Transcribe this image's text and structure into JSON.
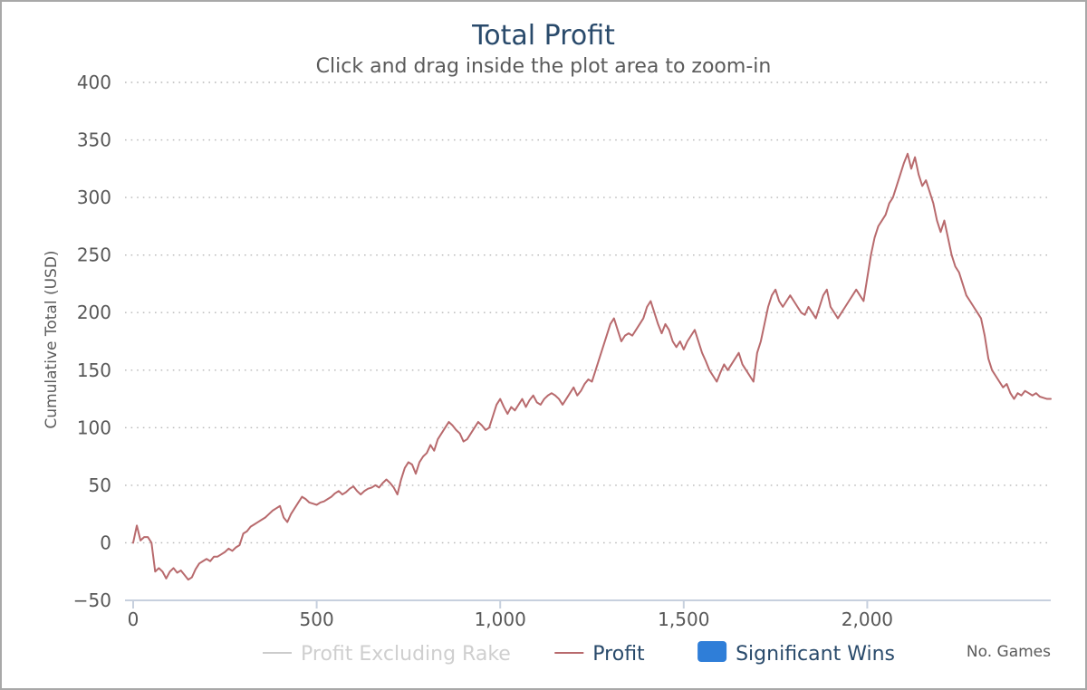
{
  "chart_data": {
    "type": "line",
    "title": "Total Profit",
    "subtitle": "Click and drag inside the plot area to zoom-in",
    "xlabel": "No. Games",
    "ylabel": "Cumulative Total (USD)",
    "xlim": [
      0,
      2500
    ],
    "ylim": [
      -50,
      400
    ],
    "xticks": [
      0,
      500,
      1000,
      1500,
      2000
    ],
    "xtick_labels": [
      "0",
      "500",
      "1,000",
      "1,500",
      "2,000"
    ],
    "yticks": [
      -50,
      0,
      50,
      100,
      150,
      200,
      250,
      300,
      350,
      400
    ],
    "ytick_labels": [
      "−50",
      "0",
      "50",
      "100",
      "150",
      "200",
      "250",
      "300",
      "350",
      "400"
    ],
    "grid": true,
    "legend_position": "bottom-center",
    "series": [
      {
        "name": "Profit Excluding Rake",
        "visible": false,
        "color": "#cccccc",
        "marker": "line",
        "points": []
      },
      {
        "name": "Profit",
        "visible": true,
        "color": "#b86a6d",
        "marker": "line",
        "points": [
          [
            0,
            0
          ],
          [
            10,
            15
          ],
          [
            20,
            2
          ],
          [
            30,
            5
          ],
          [
            40,
            5
          ],
          [
            50,
            0
          ],
          [
            60,
            -25
          ],
          [
            70,
            -22
          ],
          [
            80,
            -25
          ],
          [
            90,
            -31
          ],
          [
            100,
            -25
          ],
          [
            110,
            -22
          ],
          [
            120,
            -26
          ],
          [
            130,
            -24
          ],
          [
            140,
            -28
          ],
          [
            150,
            -32
          ],
          [
            160,
            -30
          ],
          [
            170,
            -23
          ],
          [
            180,
            -18
          ],
          [
            190,
            -16
          ],
          [
            200,
            -14
          ],
          [
            210,
            -16
          ],
          [
            220,
            -12
          ],
          [
            230,
            -12
          ],
          [
            240,
            -10
          ],
          [
            250,
            -8
          ],
          [
            260,
            -5
          ],
          [
            270,
            -7
          ],
          [
            280,
            -4
          ],
          [
            290,
            -2
          ],
          [
            300,
            8
          ],
          [
            310,
            10
          ],
          [
            320,
            14
          ],
          [
            330,
            16
          ],
          [
            340,
            18
          ],
          [
            350,
            20
          ],
          [
            360,
            22
          ],
          [
            370,
            25
          ],
          [
            380,
            28
          ],
          [
            390,
            30
          ],
          [
            400,
            32
          ],
          [
            410,
            22
          ],
          [
            420,
            18
          ],
          [
            430,
            25
          ],
          [
            440,
            30
          ],
          [
            450,
            35
          ],
          [
            460,
            40
          ],
          [
            470,
            38
          ],
          [
            480,
            35
          ],
          [
            490,
            34
          ],
          [
            500,
            33
          ],
          [
            510,
            35
          ],
          [
            520,
            36
          ],
          [
            530,
            38
          ],
          [
            540,
            40
          ],
          [
            550,
            43
          ],
          [
            560,
            45
          ],
          [
            570,
            42
          ],
          [
            580,
            44
          ],
          [
            590,
            47
          ],
          [
            600,
            49
          ],
          [
            610,
            45
          ],
          [
            620,
            42
          ],
          [
            630,
            45
          ],
          [
            640,
            47
          ],
          [
            650,
            48
          ],
          [
            660,
            50
          ],
          [
            670,
            48
          ],
          [
            680,
            52
          ],
          [
            690,
            55
          ],
          [
            700,
            52
          ],
          [
            710,
            48
          ],
          [
            720,
            42
          ],
          [
            730,
            55
          ],
          [
            740,
            65
          ],
          [
            750,
            70
          ],
          [
            760,
            68
          ],
          [
            770,
            60
          ],
          [
            780,
            70
          ],
          [
            790,
            75
          ],
          [
            800,
            78
          ],
          [
            810,
            85
          ],
          [
            820,
            80
          ],
          [
            830,
            90
          ],
          [
            840,
            95
          ],
          [
            850,
            100
          ],
          [
            860,
            105
          ],
          [
            870,
            102
          ],
          [
            880,
            98
          ],
          [
            890,
            95
          ],
          [
            900,
            88
          ],
          [
            910,
            90
          ],
          [
            920,
            95
          ],
          [
            930,
            100
          ],
          [
            940,
            105
          ],
          [
            950,
            102
          ],
          [
            960,
            98
          ],
          [
            970,
            100
          ],
          [
            980,
            110
          ],
          [
            990,
            120
          ],
          [
            1000,
            125
          ],
          [
            1010,
            118
          ],
          [
            1020,
            112
          ],
          [
            1030,
            118
          ],
          [
            1040,
            115
          ],
          [
            1050,
            120
          ],
          [
            1060,
            125
          ],
          [
            1070,
            118
          ],
          [
            1080,
            124
          ],
          [
            1090,
            128
          ],
          [
            1100,
            122
          ],
          [
            1110,
            120
          ],
          [
            1120,
            125
          ],
          [
            1130,
            128
          ],
          [
            1140,
            130
          ],
          [
            1150,
            128
          ],
          [
            1160,
            125
          ],
          [
            1170,
            120
          ],
          [
            1180,
            125
          ],
          [
            1190,
            130
          ],
          [
            1200,
            135
          ],
          [
            1210,
            128
          ],
          [
            1220,
            132
          ],
          [
            1230,
            138
          ],
          [
            1240,
            142
          ],
          [
            1250,
            140
          ],
          [
            1260,
            150
          ],
          [
            1270,
            160
          ],
          [
            1280,
            170
          ],
          [
            1290,
            180
          ],
          [
            1300,
            190
          ],
          [
            1310,
            195
          ],
          [
            1320,
            185
          ],
          [
            1330,
            175
          ],
          [
            1340,
            180
          ],
          [
            1350,
            182
          ],
          [
            1360,
            180
          ],
          [
            1370,
            185
          ],
          [
            1380,
            190
          ],
          [
            1390,
            195
          ],
          [
            1400,
            205
          ],
          [
            1410,
            210
          ],
          [
            1420,
            200
          ],
          [
            1430,
            190
          ],
          [
            1440,
            182
          ],
          [
            1450,
            190
          ],
          [
            1460,
            185
          ],
          [
            1470,
            175
          ],
          [
            1480,
            170
          ],
          [
            1490,
            175
          ],
          [
            1500,
            168
          ],
          [
            1510,
            175
          ],
          [
            1520,
            180
          ],
          [
            1530,
            185
          ],
          [
            1540,
            175
          ],
          [
            1550,
            165
          ],
          [
            1560,
            158
          ],
          [
            1570,
            150
          ],
          [
            1580,
            145
          ],
          [
            1590,
            140
          ],
          [
            1600,
            148
          ],
          [
            1610,
            155
          ],
          [
            1620,
            150
          ],
          [
            1630,
            155
          ],
          [
            1640,
            160
          ],
          [
            1650,
            165
          ],
          [
            1660,
            155
          ],
          [
            1670,
            150
          ],
          [
            1680,
            145
          ],
          [
            1690,
            140
          ],
          [
            1700,
            165
          ],
          [
            1710,
            175
          ],
          [
            1720,
            190
          ],
          [
            1730,
            205
          ],
          [
            1740,
            215
          ],
          [
            1750,
            220
          ],
          [
            1760,
            210
          ],
          [
            1770,
            205
          ],
          [
            1780,
            210
          ],
          [
            1790,
            215
          ],
          [
            1800,
            210
          ],
          [
            1810,
            205
          ],
          [
            1820,
            200
          ],
          [
            1830,
            198
          ],
          [
            1840,
            205
          ],
          [
            1850,
            200
          ],
          [
            1860,
            195
          ],
          [
            1870,
            205
          ],
          [
            1880,
            215
          ],
          [
            1890,
            220
          ],
          [
            1900,
            205
          ],
          [
            1910,
            200
          ],
          [
            1920,
            195
          ],
          [
            1930,
            200
          ],
          [
            1940,
            205
          ],
          [
            1950,
            210
          ],
          [
            1960,
            215
          ],
          [
            1970,
            220
          ],
          [
            1980,
            215
          ],
          [
            1990,
            210
          ],
          [
            2000,
            230
          ],
          [
            2010,
            250
          ],
          [
            2020,
            265
          ],
          [
            2030,
            275
          ],
          [
            2040,
            280
          ],
          [
            2050,
            285
          ],
          [
            2060,
            295
          ],
          [
            2070,
            300
          ],
          [
            2080,
            310
          ],
          [
            2090,
            320
          ],
          [
            2100,
            330
          ],
          [
            2110,
            338
          ],
          [
            2120,
            325
          ],
          [
            2130,
            335
          ],
          [
            2140,
            320
          ],
          [
            2150,
            310
          ],
          [
            2160,
            315
          ],
          [
            2170,
            305
          ],
          [
            2180,
            295
          ],
          [
            2190,
            280
          ],
          [
            2200,
            270
          ],
          [
            2210,
            280
          ],
          [
            2220,
            265
          ],
          [
            2230,
            250
          ],
          [
            2240,
            240
          ],
          [
            2250,
            235
          ],
          [
            2260,
            225
          ],
          [
            2270,
            215
          ],
          [
            2280,
            210
          ],
          [
            2290,
            205
          ],
          [
            2300,
            200
          ],
          [
            2310,
            195
          ],
          [
            2320,
            180
          ],
          [
            2330,
            160
          ],
          [
            2340,
            150
          ],
          [
            2350,
            145
          ],
          [
            2360,
            140
          ],
          [
            2370,
            135
          ],
          [
            2380,
            138
          ],
          [
            2390,
            130
          ],
          [
            2400,
            125
          ],
          [
            2410,
            130
          ],
          [
            2420,
            128
          ],
          [
            2430,
            132
          ],
          [
            2440,
            130
          ],
          [
            2450,
            128
          ],
          [
            2460,
            130
          ],
          [
            2470,
            127
          ],
          [
            2480,
            126
          ],
          [
            2490,
            125
          ],
          [
            2500,
            125
          ]
        ]
      },
      {
        "name": "Significant Wins",
        "visible": true,
        "color": "#2f7ed8",
        "marker": "box",
        "points": []
      }
    ]
  }
}
